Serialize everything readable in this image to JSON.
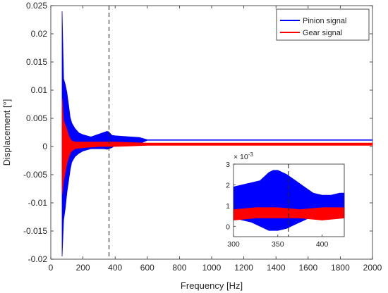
{
  "chart_data": {
    "type": "line",
    "main": {
      "xlabel": "Frequency [Hz]",
      "ylabel": "Displacement [°]",
      "xlim": [
        0,
        2000
      ],
      "ylim": [
        -0.02,
        0.025
      ],
      "xticks": [
        "0",
        "200",
        "400",
        "600",
        "800",
        "1000",
        "1200",
        "1400",
        "1600",
        "1800",
        "2000"
      ],
      "yticks": [
        "-0.02",
        "-0.015",
        "-0.01",
        "-0.005",
        "0",
        "0.005",
        "0.01",
        "0.015",
        "0.02",
        "0.025"
      ],
      "grid": false,
      "legend_position": "top-right",
      "vline_x": 362,
      "series": [
        {
          "name": "Pinion signal",
          "color": "#0000ff",
          "envelope": {
            "x": [
              70,
              80,
              90,
              100,
              110,
              120,
              130,
              150,
              175,
              200,
              250,
              300,
              330,
              350,
              360,
              380,
              400,
              450,
              500,
              550,
              600,
              650,
              700,
              800,
              1000,
              1200,
              1600,
              2000
            ],
            "upper": [
              0.024,
              0.012,
              0.011,
              0.0096,
              0.0075,
              0.0052,
              0.0042,
              0.0032,
              0.0024,
              0.0021,
              0.0017,
              0.0022,
              0.0025,
              0.0027,
              0.0026,
              0.002,
              0.0019,
              0.0018,
              0.0017,
              0.0016,
              0.0012,
              0.0012,
              0.0012,
              0.0012,
              0.0012,
              0.0012,
              0.0012,
              0.0012
            ],
            "lower": [
              -0.0195,
              -0.013,
              -0.011,
              -0.0082,
              -0.0062,
              -0.0042,
              -0.0028,
              -0.0018,
              -0.0012,
              -0.0008,
              -0.0004,
              -0.0004,
              -0.0004,
              -0.0005,
              -0.0004,
              -0.0002,
              0.0002,
              0.0004,
              0.0005,
              0.0005,
              0.0011,
              0.0011,
              0.0011,
              0.0011,
              0.0011,
              0.0011,
              0.0011,
              0.0011
            ]
          }
        },
        {
          "name": "Gear signal",
          "color": "#ff0000",
          "envelope": {
            "x": [
              70,
              80,
              90,
              100,
              110,
              120,
              130,
              150,
              175,
              200,
              250,
              300,
              400,
              500,
              600,
              800,
              1000,
              1200,
              1600,
              2000
            ],
            "upper": [
              0.0085,
              0.0045,
              0.0038,
              0.003,
              0.002,
              0.0014,
              0.001,
              0.0008,
              0.0008,
              0.0008,
              0.0008,
              0.0008,
              0.0008,
              0.0007,
              0.0006,
              0.0006,
              0.0006,
              0.0006,
              0.0006,
              0.0006
            ],
            "lower": [
              -0.0085,
              -0.006,
              -0.0045,
              -0.003,
              -0.002,
              -0.0012,
              -0.0008,
              -0.0004,
              -0.0003,
              -0.0002,
              -0.0001,
              0.0,
              0.0,
              0.0001,
              0.0002,
              0.0002,
              0.0002,
              0.0002,
              0.0002,
              0.0002
            ]
          }
        }
      ]
    },
    "inset": {
      "xlim": [
        300,
        425
      ],
      "ylim": [
        -0.0005,
        0.003
      ],
      "xticks": [
        "300",
        "350",
        "400"
      ],
      "yticks": [
        "0",
        "1",
        "2",
        "3"
      ],
      "exponent_label": "× 10",
      "exponent": "-3",
      "vline_x": 362,
      "series": [
        {
          "name": "Pinion signal",
          "color": "#0000ff",
          "envelope": {
            "x": [
              300,
              310,
              320,
              330,
              340,
              345,
              350,
              360,
              370,
              380,
              390,
              400,
              410,
              420,
              425
            ],
            "upper": [
              0.0019,
              0.002,
              0.0021,
              0.0022,
              0.0026,
              0.0027,
              0.0027,
              0.0025,
              0.0022,
              0.0019,
              0.0016,
              0.0015,
              0.0015,
              0.0016,
              0.0016
            ],
            "lower": [
              0.0004,
              0.0003,
              0.0002,
              0.0,
              -0.0002,
              -0.0002,
              -0.0002,
              -0.0001,
              0.0001,
              0.0003,
              0.0005,
              0.0006,
              0.0006,
              0.0005,
              0.0005
            ]
          }
        },
        {
          "name": "Gear signal",
          "color": "#ff0000",
          "envelope": {
            "x": [
              300,
              325,
              350,
              375,
              400,
              425
            ],
            "upper": [
              0.0008,
              0.0009,
              0.0009,
              0.0008,
              0.0009,
              0.0009
            ],
            "lower": [
              0.0003,
              0.0004,
              0.0004,
              0.0004,
              0.0003,
              0.0004
            ]
          }
        }
      ]
    }
  }
}
